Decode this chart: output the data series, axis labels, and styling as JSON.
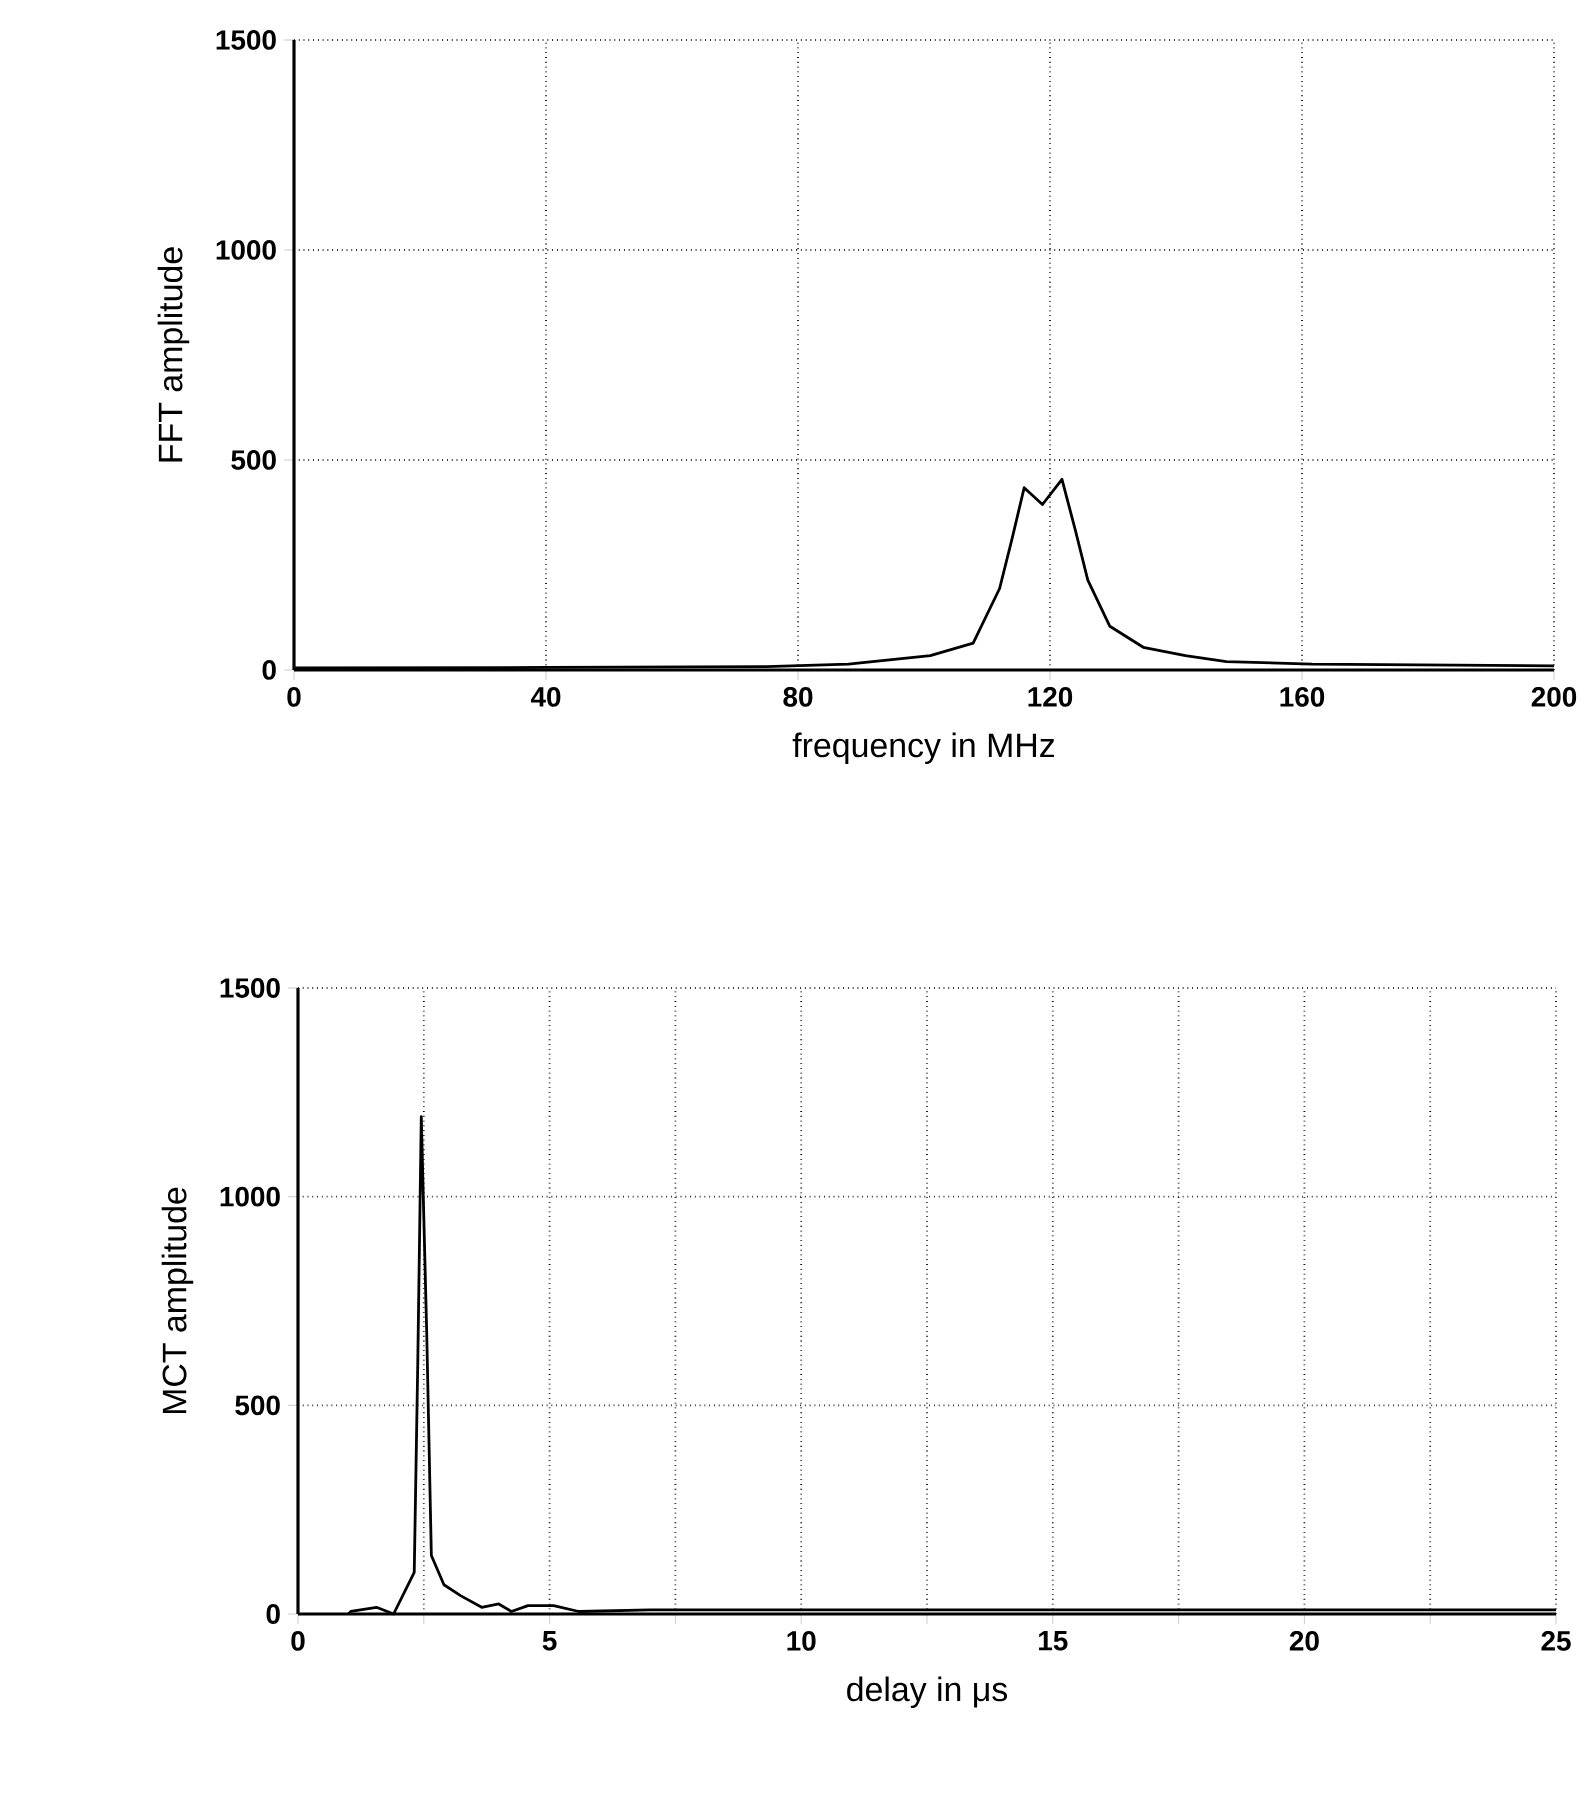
{
  "chart_data": [
    {
      "type": "line",
      "xlabel": "frequency in MHz",
      "ylabel": "FFT amplitude",
      "color": "#000000",
      "grid": true,
      "xlim": [
        0,
        200
      ],
      "ylim": [
        0,
        1500
      ],
      "xticks": [
        0,
        40,
        80,
        120,
        160,
        200
      ],
      "yticks": [
        0,
        500,
        1000,
        1500
      ],
      "x": [
        0,
        40,
        75,
        88,
        101,
        107.8,
        112,
        114,
        115.9,
        118.8,
        121.9,
        124,
        126,
        129.5,
        134.8,
        141.5,
        148,
        161.6,
        200
      ],
      "values": [
        5,
        6,
        8,
        14,
        34,
        64,
        194,
        314,
        434,
        394,
        454,
        334,
        214,
        104,
        54,
        34,
        20,
        14,
        10
      ]
    },
    {
      "type": "line",
      "xlabel": "delay in μs",
      "ylabel": "MCT amplitude",
      "color": "#000000",
      "grid": true,
      "xlim": [
        0,
        25
      ],
      "ylim": [
        0,
        1500
      ],
      "xticks": [
        0,
        {
          "value": 2.5,
          "label": null
        },
        5,
        {
          "value": 7.5,
          "label": null
        },
        10,
        {
          "value": 12.5,
          "label": null
        },
        15,
        {
          "value": 17.5,
          "label": null
        },
        20,
        {
          "value": 22.5,
          "label": null
        },
        25
      ],
      "yticks": [
        0,
        500,
        1000,
        1500
      ],
      "x": [
        1.0,
        1.05,
        1.56,
        1.9,
        2.31,
        2.38,
        2.45,
        2.56,
        2.65,
        2.9,
        3.23,
        3.65,
        3.99,
        4.24,
        4.57,
        5.08,
        5.58,
        7,
        10,
        15,
        20,
        25
      ],
      "values": [
        0,
        6,
        16,
        0,
        100,
        600,
        1192,
        663,
        140,
        70,
        44,
        16,
        24,
        6,
        20,
        20,
        6,
        10,
        10,
        10,
        10,
        10
      ]
    }
  ]
}
